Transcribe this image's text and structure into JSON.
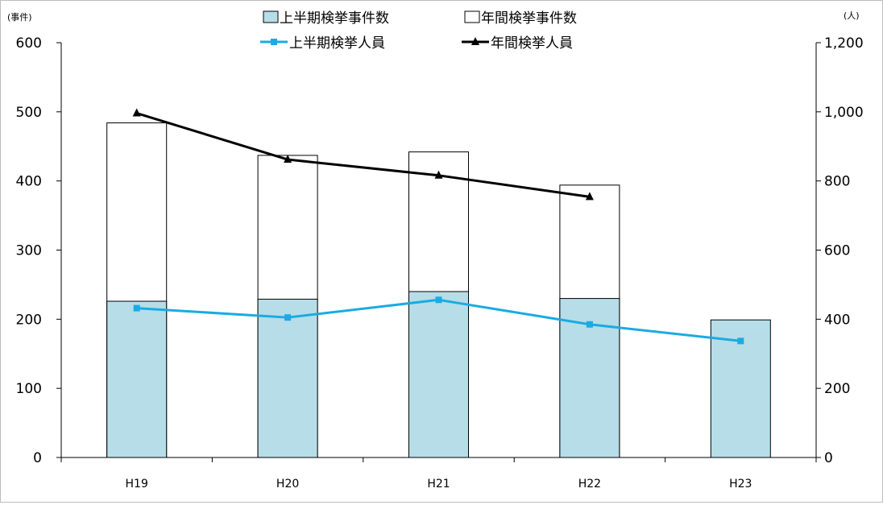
{
  "chart_data": {
    "type": "bar",
    "categories": [
      "H19",
      "H20",
      "H21",
      "H22",
      "H23"
    ],
    "y_left": {
      "unit": "(事件)",
      "lim": [
        0,
        600
      ],
      "ticks": [
        "0",
        "100",
        "200",
        "300",
        "400",
        "500",
        "600"
      ],
      "tick_values": [
        0,
        100,
        200,
        300,
        400,
        500,
        600
      ]
    },
    "y_right": {
      "unit": "(人)",
      "lim": [
        0,
        1200
      ],
      "ticks": [
        "0",
        "200",
        "400",
        "600",
        "800",
        "1,000",
        "1,200"
      ],
      "tick_values": [
        0,
        200,
        400,
        600,
        800,
        1000,
        1200
      ]
    },
    "series": [
      {
        "name": "上半期検挙事件数",
        "kind": "bar",
        "axis": "left",
        "color": "#b7dde8",
        "values": [
          226,
          229,
          240,
          230,
          199
        ]
      },
      {
        "name": "年間検挙事件数",
        "kind": "bar",
        "axis": "left",
        "color": "#ffffff",
        "values": [
          484,
          437,
          442,
          394,
          null
        ]
      },
      {
        "name": "上半期検挙人員",
        "kind": "line",
        "axis": "right",
        "color": "#1aabe2",
        "marker": "square",
        "values": [
          432,
          405,
          456,
          385,
          337
        ]
      },
      {
        "name": "年間検挙人員",
        "kind": "line",
        "axis": "right",
        "color": "#000000",
        "marker": "triangle",
        "values": [
          996,
          862,
          816,
          754,
          null
        ]
      }
    ],
    "grid": false,
    "legend_position": "top-center"
  }
}
